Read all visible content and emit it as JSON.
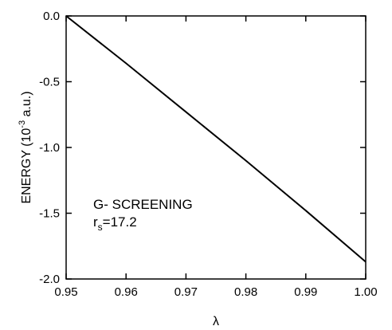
{
  "chart_data": {
    "type": "line",
    "xlabel": "λ",
    "ylabel": {
      "prefix": "ENERGY (10",
      "exponent": "-3",
      "suffix": " a.u.)"
    },
    "xlim": [
      0.95,
      1.0
    ],
    "ylim": [
      -2.0,
      0.0
    ],
    "x_ticks": [
      "0.95",
      "0.96",
      "0.97",
      "0.98",
      "0.99",
      "1.00"
    ],
    "y_ticks": [
      "0.0",
      "-0.5",
      "-1.0",
      "-1.5",
      "-2.0"
    ],
    "grid": false,
    "series": [
      {
        "x": [
          0.95,
          0.96,
          0.97,
          0.98,
          0.99,
          1.0
        ],
        "y": [
          0.0,
          -0.36,
          -0.73,
          -1.1,
          -1.48,
          -1.87
        ],
        "color": "#000000"
      }
    ],
    "annotations": {
      "line1": "G- SCREENING",
      "line2_prefix": "r",
      "line2_sub": "s",
      "line2_suffix": "=17.2"
    }
  }
}
